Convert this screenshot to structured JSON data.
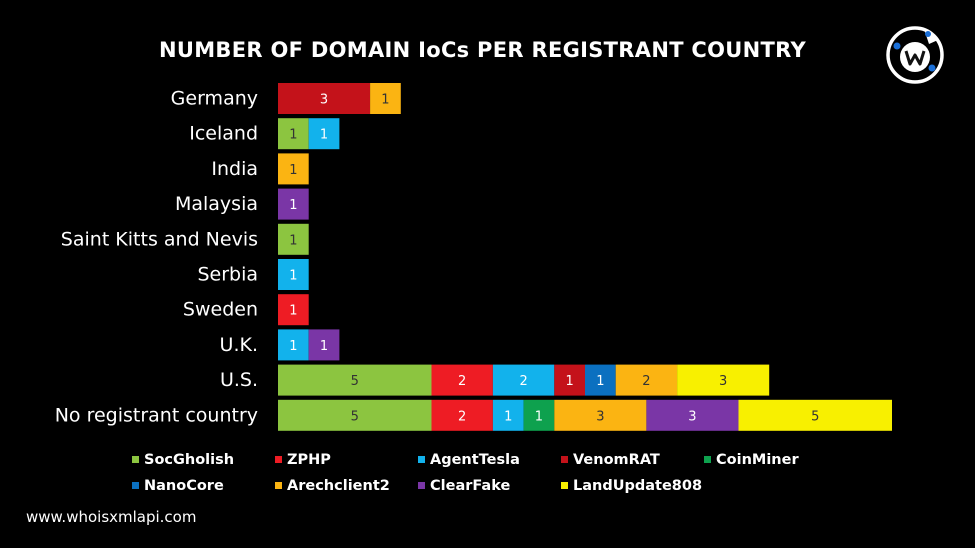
{
  "chart_data": {
    "type": "bar",
    "orientation": "horizontal",
    "stacked": true,
    "title": "NUMBER OF DOMAIN IoCs PER REGISTRANT COUNTRY",
    "categories": [
      "Germany",
      "Iceland",
      "India",
      "Malaysia",
      "Saint Kitts and Nevis",
      "Serbia",
      "Sweden",
      "U.K.",
      "U.S.",
      "No registrant country"
    ],
    "series": [
      {
        "name": "SocGholish",
        "color": "#8cc540",
        "values": [
          0,
          1,
          0,
          0,
          1,
          0,
          0,
          0,
          5,
          5
        ]
      },
      {
        "name": "ZPHP",
        "color": "#ee1c24",
        "values": [
          0,
          0,
          0,
          0,
          0,
          0,
          1,
          0,
          2,
          2
        ]
      },
      {
        "name": "AgentTesla",
        "color": "#12b2ec",
        "values": [
          0,
          1,
          0,
          0,
          0,
          1,
          0,
          1,
          2,
          1
        ]
      },
      {
        "name": "VenomRAT",
        "color": "#c4121a",
        "values": [
          3,
          0,
          0,
          0,
          0,
          0,
          0,
          0,
          1,
          0
        ]
      },
      {
        "name": "CoinMiner",
        "color": "#0ea14e",
        "values": [
          0,
          0,
          0,
          0,
          0,
          0,
          0,
          0,
          0,
          1
        ]
      },
      {
        "name": "NanoCore",
        "color": "#0b70c0",
        "values": [
          0,
          0,
          0,
          0,
          0,
          0,
          0,
          0,
          1,
          0
        ]
      },
      {
        "name": "Arechclient2",
        "color": "#fbb412",
        "values": [
          1,
          0,
          1,
          0,
          0,
          0,
          0,
          0,
          2,
          3
        ]
      },
      {
        "name": "ClearFake",
        "color": "#7a36a6",
        "values": [
          0,
          0,
          0,
          1,
          0,
          0,
          0,
          1,
          0,
          3
        ]
      },
      {
        "name": "LandUpdate808",
        "color": "#f8f000",
        "values": [
          0,
          0,
          0,
          0,
          0,
          0,
          0,
          0,
          3,
          5
        ]
      }
    ],
    "xlim": [
      0,
      20
    ],
    "grid": false,
    "legend": "bottom"
  },
  "footer_text": "www.whoisxmlapi.com",
  "logo_icon": "whoisxmlapi-logo-icon",
  "colors": {
    "background": "#000000",
    "text": "#ffffff"
  }
}
